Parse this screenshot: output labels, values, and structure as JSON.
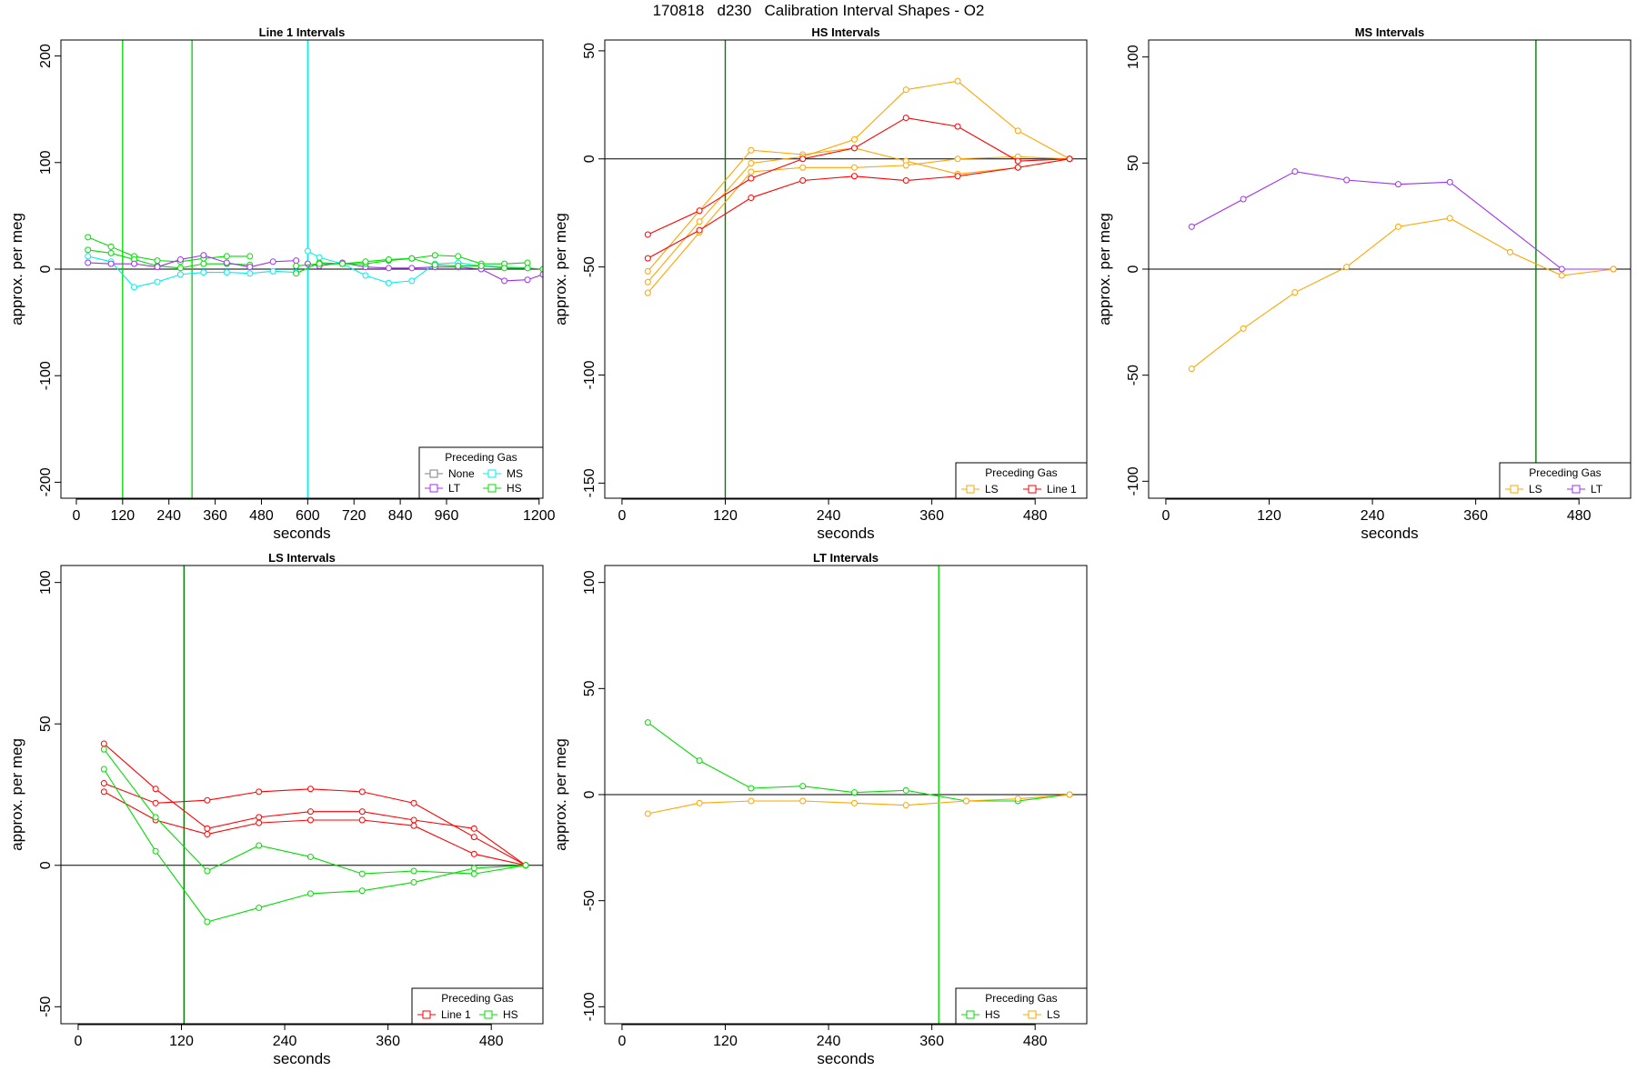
{
  "figure": {
    "title": "170818   d230   Calibration Interval Shapes - O2",
    "colors": {
      "None": "#808080",
      "LT": "#a030f0",
      "MS": "#00eeee",
      "HS": "#00dd00",
      "LS": "#ffa500",
      "Line 1": "#ff0000",
      "vline_dark": "#008000"
    }
  },
  "chart_data": [
    {
      "type": "line",
      "title": "Line 1 Intervals",
      "xlabel": "seconds",
      "ylabel": "approx. per meg",
      "xlim": [
        -40,
        1210
      ],
      "ylim": [
        -215,
        215
      ],
      "xticks": [
        0,
        120,
        240,
        360,
        480,
        600,
        720,
        840,
        960,
        1200
      ],
      "yticks": [
        -200,
        -100,
        0,
        100,
        200
      ],
      "hline": 0,
      "vlines": [
        {
          "x": 120,
          "color": "HS"
        },
        {
          "x": 300,
          "color": "HS"
        },
        {
          "x": 600,
          "color": "MS"
        }
      ],
      "legend": {
        "title": "Preceding Gas",
        "position": "bottom-right",
        "columns": 2,
        "entries": [
          "None",
          "MS",
          "LT",
          "HS"
        ]
      },
      "series": [
        {
          "group": "HS",
          "x": [
            30,
            90,
            150,
            210,
            270,
            330,
            390,
            450
          ],
          "y": [
            30,
            21,
            12,
            8,
            7,
            10,
            12,
            12
          ]
        },
        {
          "group": "HS",
          "x": [
            30,
            90,
            150,
            210,
            270,
            330,
            390,
            450
          ],
          "y": [
            18,
            15,
            9,
            3,
            1,
            5,
            5,
            4
          ]
        },
        {
          "group": "MS",
          "x": [
            30,
            90,
            150,
            210,
            270,
            330,
            390,
            450,
            510,
            570
          ],
          "y": [
            12,
            7,
            -17,
            -12,
            -5,
            -3,
            -3,
            -4,
            -2,
            -3
          ]
        },
        {
          "group": "LT",
          "x": [
            30,
            90,
            150,
            210,
            270,
            330,
            390,
            450,
            510,
            570
          ],
          "y": [
            6,
            5,
            5,
            2,
            9,
            13,
            6,
            2,
            7,
            8
          ]
        },
        {
          "group": "MS",
          "x": [
            600,
            630,
            690,
            750,
            810,
            870,
            930,
            990,
            1050,
            1110,
            1170
          ],
          "y": [
            17,
            11,
            5,
            -6,
            -13,
            -11,
            5,
            6,
            3,
            2,
            1
          ]
        },
        {
          "group": "LT",
          "x": [
            600,
            630,
            690,
            750,
            810,
            870,
            930,
            990,
            1050,
            1110,
            1170,
            1210
          ],
          "y": [
            5,
            3,
            6,
            2,
            1,
            1,
            2,
            2,
            0,
            -11,
            -10,
            -5
          ]
        },
        {
          "group": "HS",
          "x": [
            570,
            630,
            690,
            750,
            810,
            870,
            930,
            990,
            1050,
            1110,
            1170
          ],
          "y": [
            -4,
            6,
            5,
            5,
            8,
            10,
            13,
            12,
            5,
            5,
            6
          ]
        },
        {
          "group": "HS",
          "x": [
            570,
            630,
            690,
            750,
            810,
            870,
            930,
            990,
            1050,
            1110,
            1170,
            1210
          ],
          "y": [
            3,
            5,
            5,
            7,
            9,
            10,
            4,
            3,
            3,
            1,
            1,
            0
          ]
        }
      ]
    },
    {
      "type": "line",
      "title": "HS Intervals",
      "xlabel": "seconds",
      "ylabel": "approx. per meg",
      "xlim": [
        -20,
        540
      ],
      "ylim": [
        -157,
        55
      ],
      "xticks": [
        0,
        120,
        240,
        360,
        480
      ],
      "yticks": [
        -150,
        -100,
        -50,
        0,
        50
      ],
      "hline": 0,
      "vlines": [
        {
          "x": 120,
          "color": "vline_dark"
        }
      ],
      "legend": {
        "title": "Preceding Gas",
        "position": "bottom-right",
        "columns": 2,
        "entries": [
          "LS",
          "Line 1"
        ]
      },
      "series": [
        {
          "group": "LS",
          "x": [
            30,
            90,
            150,
            210,
            270,
            330,
            390,
            460,
            520
          ],
          "y": [
            -52,
            -24,
            4,
            2,
            5,
            -1,
            -7,
            -4,
            0
          ]
        },
        {
          "group": "LS",
          "x": [
            30,
            90,
            150,
            210,
            270,
            330,
            390,
            460,
            520
          ],
          "y": [
            -57,
            -29,
            -2,
            1,
            9,
            32,
            36,
            13,
            0
          ]
        },
        {
          "group": "LS",
          "x": [
            30,
            90,
            150,
            210,
            270,
            330,
            390,
            460,
            520
          ],
          "y": [
            -62,
            -34,
            -6,
            -4,
            -4,
            -3,
            0,
            1,
            0
          ]
        },
        {
          "group": "Line 1",
          "x": [
            30,
            90,
            150,
            210,
            270,
            330,
            390,
            460,
            520
          ],
          "y": [
            -35,
            -24,
            -9,
            0,
            5,
            19,
            15,
            -1,
            0
          ]
        },
        {
          "group": "Line 1",
          "x": [
            30,
            90,
            150,
            210,
            270,
            330,
            390,
            460,
            520
          ],
          "y": [
            -46,
            -33,
            -18,
            -10,
            -8,
            -10,
            -8,
            -4,
            0
          ]
        }
      ]
    },
    {
      "type": "line",
      "title": "MS Intervals",
      "xlabel": "seconds",
      "ylabel": "approx. per meg",
      "xlim": [
        -20,
        540
      ],
      "ylim": [
        -108,
        108
      ],
      "xticks": [
        0,
        120,
        240,
        360,
        480
      ],
      "yticks": [
        -100,
        -50,
        0,
        50,
        100
      ],
      "hline": 0,
      "vlines": [
        {
          "x": 430,
          "color": "vline_dark"
        }
      ],
      "legend": {
        "title": "Preceding Gas",
        "position": "bottom-right",
        "columns": 2,
        "entries": [
          "LS",
          "LT"
        ]
      },
      "series": [
        {
          "group": "LT",
          "x": [
            30,
            90,
            150,
            210,
            270,
            330,
            460,
            520
          ],
          "y": [
            20,
            33,
            46,
            42,
            40,
            41,
            0,
            0
          ]
        },
        {
          "group": "LS",
          "x": [
            30,
            90,
            150,
            210,
            270,
            330,
            400,
            460,
            520
          ],
          "y": [
            -47,
            -28,
            -11,
            1,
            20,
            24,
            8,
            -3,
            0
          ]
        }
      ]
    },
    {
      "type": "line",
      "title": "LS Intervals",
      "xlabel": "seconds",
      "ylabel": "approx. per meg",
      "xlim": [
        -20,
        540
      ],
      "ylim": [
        -56,
        106
      ],
      "xticks": [
        0,
        120,
        240,
        360,
        480
      ],
      "yticks": [
        -50,
        0,
        50,
        100
      ],
      "hline": 0,
      "vlines": [
        {
          "x": 123,
          "color": "vline_dark"
        }
      ],
      "legend": {
        "title": "Preceding Gas",
        "position": "bottom-right",
        "columns": 2,
        "entries": [
          "Line 1",
          "HS"
        ]
      },
      "series": [
        {
          "group": "Line 1",
          "x": [
            30,
            90,
            150,
            210,
            270,
            330,
            390,
            460,
            520
          ],
          "y": [
            43,
            27,
            13,
            17,
            19,
            19,
            16,
            13,
            0
          ]
        },
        {
          "group": "Line 1",
          "x": [
            30,
            90,
            150,
            210,
            270,
            330,
            390,
            460,
            520
          ],
          "y": [
            29,
            22,
            23,
            26,
            27,
            26,
            22,
            10,
            0
          ]
        },
        {
          "group": "Line 1",
          "x": [
            30,
            90,
            150,
            210,
            270,
            330,
            390,
            460,
            520
          ],
          "y": [
            26,
            16,
            11,
            15,
            16,
            16,
            14,
            4,
            0
          ]
        },
        {
          "group": "HS",
          "x": [
            30,
            90,
            150,
            210,
            270,
            330,
            390,
            460,
            520
          ],
          "y": [
            41,
            17,
            -2,
            7,
            3,
            -3,
            -2,
            -3,
            0
          ]
        },
        {
          "group": "HS",
          "x": [
            30,
            90,
            150,
            210,
            270,
            330,
            390,
            460,
            520
          ],
          "y": [
            34,
            5,
            -20,
            -15,
            -10,
            -9,
            -6,
            -1,
            0
          ]
        }
      ]
    },
    {
      "type": "line",
      "title": "LT Intervals",
      "xlabel": "seconds",
      "ylabel": "approx. per meg",
      "xlim": [
        -20,
        540
      ],
      "ylim": [
        -108,
        108
      ],
      "xticks": [
        0,
        120,
        240,
        360,
        480
      ],
      "yticks": [
        -100,
        -50,
        0,
        50,
        100
      ],
      "hline": 0,
      "vlines": [
        {
          "x": 368,
          "color": "HS"
        }
      ],
      "legend": {
        "title": "Preceding Gas",
        "position": "bottom-right",
        "columns": 2,
        "entries": [
          "HS",
          "LS"
        ]
      },
      "series": [
        {
          "group": "HS",
          "x": [
            30,
            90,
            150,
            210,
            270,
            330,
            400,
            460,
            520
          ],
          "y": [
            34,
            16,
            3,
            4,
            1,
            2,
            -3,
            -3,
            0
          ]
        },
        {
          "group": "LS",
          "x": [
            30,
            90,
            150,
            210,
            270,
            330,
            400,
            460,
            520
          ],
          "y": [
            -9,
            -4,
            -3,
            -3,
            -4,
            -5,
            -3,
            -2,
            0
          ]
        }
      ]
    }
  ]
}
